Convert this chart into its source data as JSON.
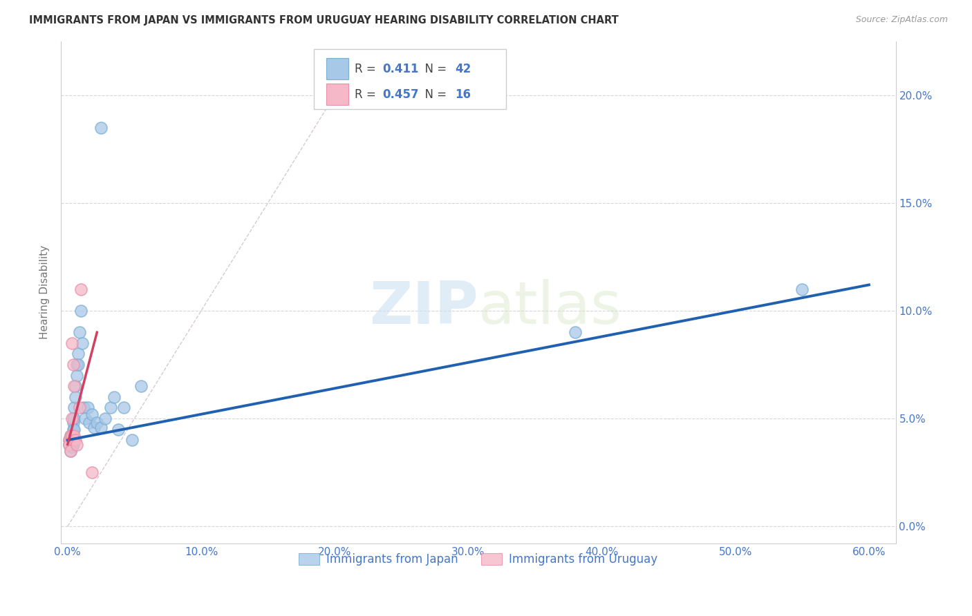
{
  "title": "IMMIGRANTS FROM JAPAN VS IMMIGRANTS FROM URUGUAY HEARING DISABILITY CORRELATION CHART",
  "source": "Source: ZipAtlas.com",
  "ylabel_label": "Hearing Disability",
  "japan_color": "#a8c8e8",
  "japan_edge_color": "#7bafd4",
  "uruguay_color": "#f5b8c8",
  "uruguay_edge_color": "#e890a8",
  "japan_line_color": "#2060b0",
  "uruguay_line_color": "#d04060",
  "diag_line_color": "#ccbbcc",
  "legend_japan_R": "0.411",
  "legend_japan_N": "42",
  "legend_uruguay_R": "0.457",
  "legend_uruguay_N": "16",
  "japan_scatter_x": [
    0.001,
    0.001,
    0.002,
    0.002,
    0.002,
    0.003,
    0.003,
    0.003,
    0.003,
    0.004,
    0.004,
    0.004,
    0.004,
    0.005,
    0.005,
    0.005,
    0.006,
    0.006,
    0.007,
    0.007,
    0.008,
    0.008,
    0.009,
    0.01,
    0.011,
    0.012,
    0.013,
    0.015,
    0.016,
    0.018,
    0.02,
    0.022,
    0.025,
    0.028,
    0.032,
    0.035,
    0.038,
    0.042,
    0.048,
    0.055,
    0.38,
    0.55
  ],
  "japan_scatter_y": [
    0.04,
    0.038,
    0.042,
    0.04,
    0.035,
    0.042,
    0.04,
    0.038,
    0.037,
    0.05,
    0.048,
    0.045,
    0.038,
    0.055,
    0.05,
    0.045,
    0.065,
    0.06,
    0.075,
    0.07,
    0.08,
    0.075,
    0.09,
    0.1,
    0.085,
    0.055,
    0.05,
    0.055,
    0.048,
    0.052,
    0.046,
    0.048,
    0.046,
    0.05,
    0.055,
    0.06,
    0.045,
    0.055,
    0.04,
    0.065,
    0.09,
    0.11
  ],
  "japan_outlier_x": [
    0.025
  ],
  "japan_outlier_y": [
    0.185
  ],
  "uruguay_scatter_x": [
    0.001,
    0.001,
    0.002,
    0.002,
    0.003,
    0.003,
    0.003,
    0.004,
    0.004,
    0.005,
    0.005,
    0.006,
    0.007,
    0.009,
    0.01,
    0.018
  ],
  "uruguay_scatter_y": [
    0.04,
    0.038,
    0.042,
    0.035,
    0.085,
    0.05,
    0.042,
    0.075,
    0.04,
    0.065,
    0.042,
    0.04,
    0.038,
    0.055,
    0.11,
    0.025
  ],
  "japan_line_x": [
    0.0,
    0.6
  ],
  "japan_line_y": [
    0.04,
    0.112
  ],
  "uruguay_line_x": [
    0.0,
    0.022
  ],
  "uruguay_line_y": [
    0.038,
    0.09
  ],
  "diag_line_x": [
    0.0,
    0.22
  ],
  "diag_line_y": [
    0.0,
    0.22
  ],
  "xlim": [
    -0.005,
    0.62
  ],
  "ylim": [
    -0.008,
    0.225
  ],
  "xtick_vals": [
    0.0,
    0.1,
    0.2,
    0.3,
    0.4,
    0.5,
    0.6
  ],
  "xtick_labels": [
    "0.0%",
    "10.0%",
    "20.0%",
    "30.0%",
    "40.0%",
    "50.0%",
    "60.0%"
  ],
  "ytick_vals": [
    0.0,
    0.05,
    0.1,
    0.15,
    0.2
  ],
  "ytick_labels": [
    "0.0%",
    "5.0%",
    "10.0%",
    "15.0%",
    "20.0%"
  ],
  "watermark_zip": "ZIP",
  "watermark_atlas": "atlas",
  "background_color": "#ffffff",
  "grid_color": "#cccccc",
  "tick_color": "#4477cc",
  "axis_color": "#cccccc"
}
